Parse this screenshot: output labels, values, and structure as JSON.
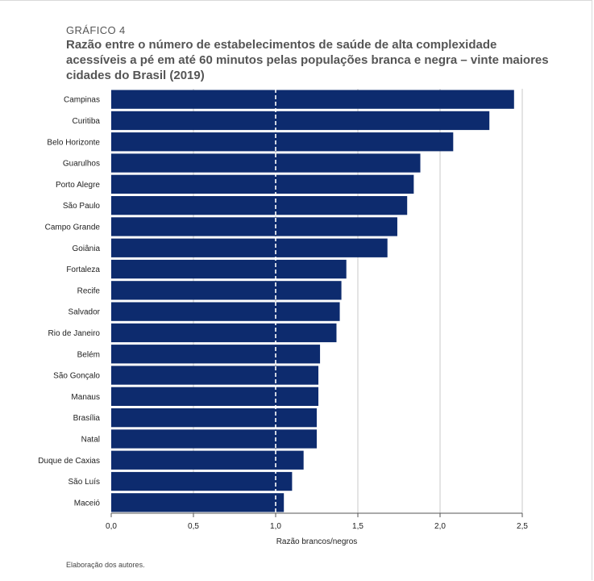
{
  "header": {
    "label": "GRÁFICO 4",
    "title": "Razão entre o número de estabelecimentos de saúde de alta complexidade acessíveis a pé em até 60 minutos pelas populações branca e negra – vinte maiores cidades do Brasil (2019)"
  },
  "footer": {
    "source": "Elaboração dos autores."
  },
  "chart_data": {
    "type": "bar",
    "orientation": "horizontal",
    "categories": [
      "Campinas",
      "Curitiba",
      "Belo Horizonte",
      "Guarulhos",
      "Porto Alegre",
      "São Paulo",
      "Campo Grande",
      "Goiânia",
      "Fortaleza",
      "Recife",
      "Salvador",
      "Rio de Janeiro",
      "Belém",
      "São Gonçalo",
      "Manaus",
      "Brasília",
      "Natal",
      "Duque de Caxias",
      "São Luís",
      "Maceió"
    ],
    "values": [
      2.45,
      2.3,
      2.08,
      1.88,
      1.84,
      1.8,
      1.74,
      1.68,
      1.43,
      1.4,
      1.39,
      1.37,
      1.27,
      1.26,
      1.26,
      1.25,
      1.25,
      1.17,
      1.1,
      1.05
    ],
    "xlabel": "Razão brancos/negros",
    "xlim": [
      0,
      2.5
    ],
    "xticks": [
      0,
      0.5,
      1.0,
      1.5,
      2.0,
      2.5
    ],
    "xtick_labels": [
      "0,0",
      "0,5",
      "1,0",
      "1,5",
      "2,0",
      "2,5"
    ],
    "reference_line": 1.0,
    "grid": "vertical",
    "bar_color": "#0d2b6e",
    "grid_color": "#c8c8c8",
    "reference_line_color": "#ffffff"
  }
}
